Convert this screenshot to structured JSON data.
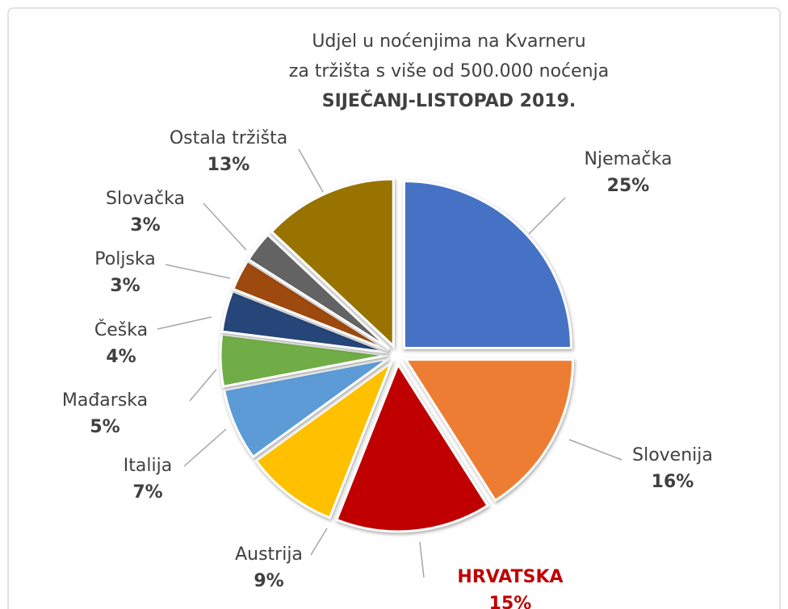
{
  "chart_data": {
    "type": "pie",
    "title": [
      "Udjel u noćenjima na Kvarneru",
      "za tržišta s više od 500.000 noćenja"
    ],
    "subtitle": "SIJEČANJ-LISTOPAD 2019.",
    "categories": [
      "Njemačka",
      "Slovenija",
      "HRVATSKA",
      "Austrija",
      "Italija",
      "Mađarska",
      "Češka",
      "Poljska",
      "Slovačka",
      "Ostala tržišta"
    ],
    "values": [
      25,
      16,
      15,
      9,
      7,
      5,
      4,
      3,
      3,
      13
    ],
    "value_labels": [
      "25%",
      "16%",
      "15%",
      "9%",
      "7%",
      "5%",
      "4%",
      "3%",
      "3%",
      "13%"
    ],
    "colors": [
      "#4472c4",
      "#ed7d31",
      "#c00000",
      "#ffc000",
      "#5b9bd5",
      "#70ad47",
      "#264478",
      "#9e480e",
      "#636363",
      "#997300"
    ],
    "label_colors": [
      "#404040",
      "#404040",
      "#c00000",
      "#404040",
      "#404040",
      "#404040",
      "#404040",
      "#404040",
      "#404040",
      "#404040"
    ]
  }
}
